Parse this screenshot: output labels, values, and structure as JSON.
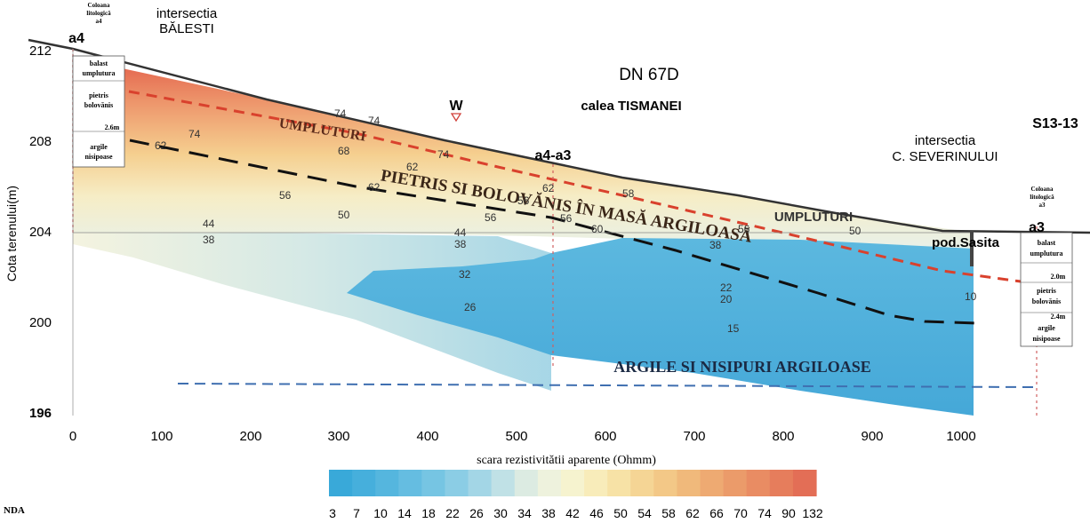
{
  "title": "DN 67D",
  "street": "calea TISMANEI",
  "intersections": {
    "left": [
      "intersectia",
      "BĂLESTI"
    ],
    "right": [
      "intersectia",
      "C. SEVERINULUI"
    ]
  },
  "section_id": "S13-13",
  "markers": {
    "w": "W",
    "a4": "a4",
    "a4a3": "a4-a3",
    "a3": "a3",
    "bridge": "pod.Sasita"
  },
  "y_axis": {
    "label": "Cota terenului(m)",
    "ticks": [
      "212",
      "208",
      "204",
      "200",
      "196"
    ]
  },
  "x_axis": {
    "ticks": [
      "0",
      "100",
      "200",
      "300",
      "400",
      "500",
      "600",
      "700",
      "800",
      "900",
      "1000"
    ]
  },
  "layers": {
    "fill_left": "UMPLUTURI",
    "fill_right": "UMPLUTURI",
    "gravel": "PIETRIS SI BOLOVĂNIS ÎN MASĂ ARGILOASĂ",
    "clay": "ARGILE SI NISIPURI ARGILOASE"
  },
  "columns": {
    "left": {
      "title": [
        "Coloana",
        "litologică",
        "a4"
      ],
      "items": [
        "balast",
        "umplutura",
        "pietris",
        "bolovănis",
        "2.6m",
        "argile",
        "nisipoase"
      ]
    },
    "right": {
      "title": [
        "Coloana",
        "litologică",
        "a3"
      ],
      "items": [
        "balast",
        "umplutura",
        "2.0m",
        "pietris",
        "bolovănis",
        "2.4m",
        "argile",
        "nisipoase"
      ]
    }
  },
  "resistivity_labels": [
    "74",
    "74",
    "74",
    "68",
    "62",
    "62",
    "74",
    "62",
    "56",
    "62",
    "56",
    "56",
    "58",
    "50",
    "56",
    "44",
    "38",
    "44",
    "38",
    "32",
    "26",
    "60",
    "56",
    "50",
    "38",
    "22",
    "20",
    "10",
    "15"
  ],
  "colorbar": {
    "title": "scara rezistivitătii aparente (Ohmm)",
    "ticks": [
      "3",
      "7",
      "10",
      "14",
      "18",
      "22",
      "26",
      "30",
      "34",
      "38",
      "42",
      "46",
      "50",
      "54",
      "58",
      "62",
      "66",
      "70",
      "74",
      "90",
      "132"
    ],
    "colors": [
      "#39a9d9",
      "#46afdc",
      "#55b6de",
      "#65bde1",
      "#76c5e3",
      "#8bcde5",
      "#a3d6e6",
      "#c0e1e6",
      "#dcebe2",
      "#eef2dd",
      "#f6f3cf",
      "#f8ecba",
      "#f7e2a6",
      "#f5d595",
      "#f3c887",
      "#f0b97b",
      "#eeaa72",
      "#eb9b6a",
      "#e98c63",
      "#e67d5c",
      "#e36e56"
    ]
  },
  "legend_fragment": "NDA"
}
